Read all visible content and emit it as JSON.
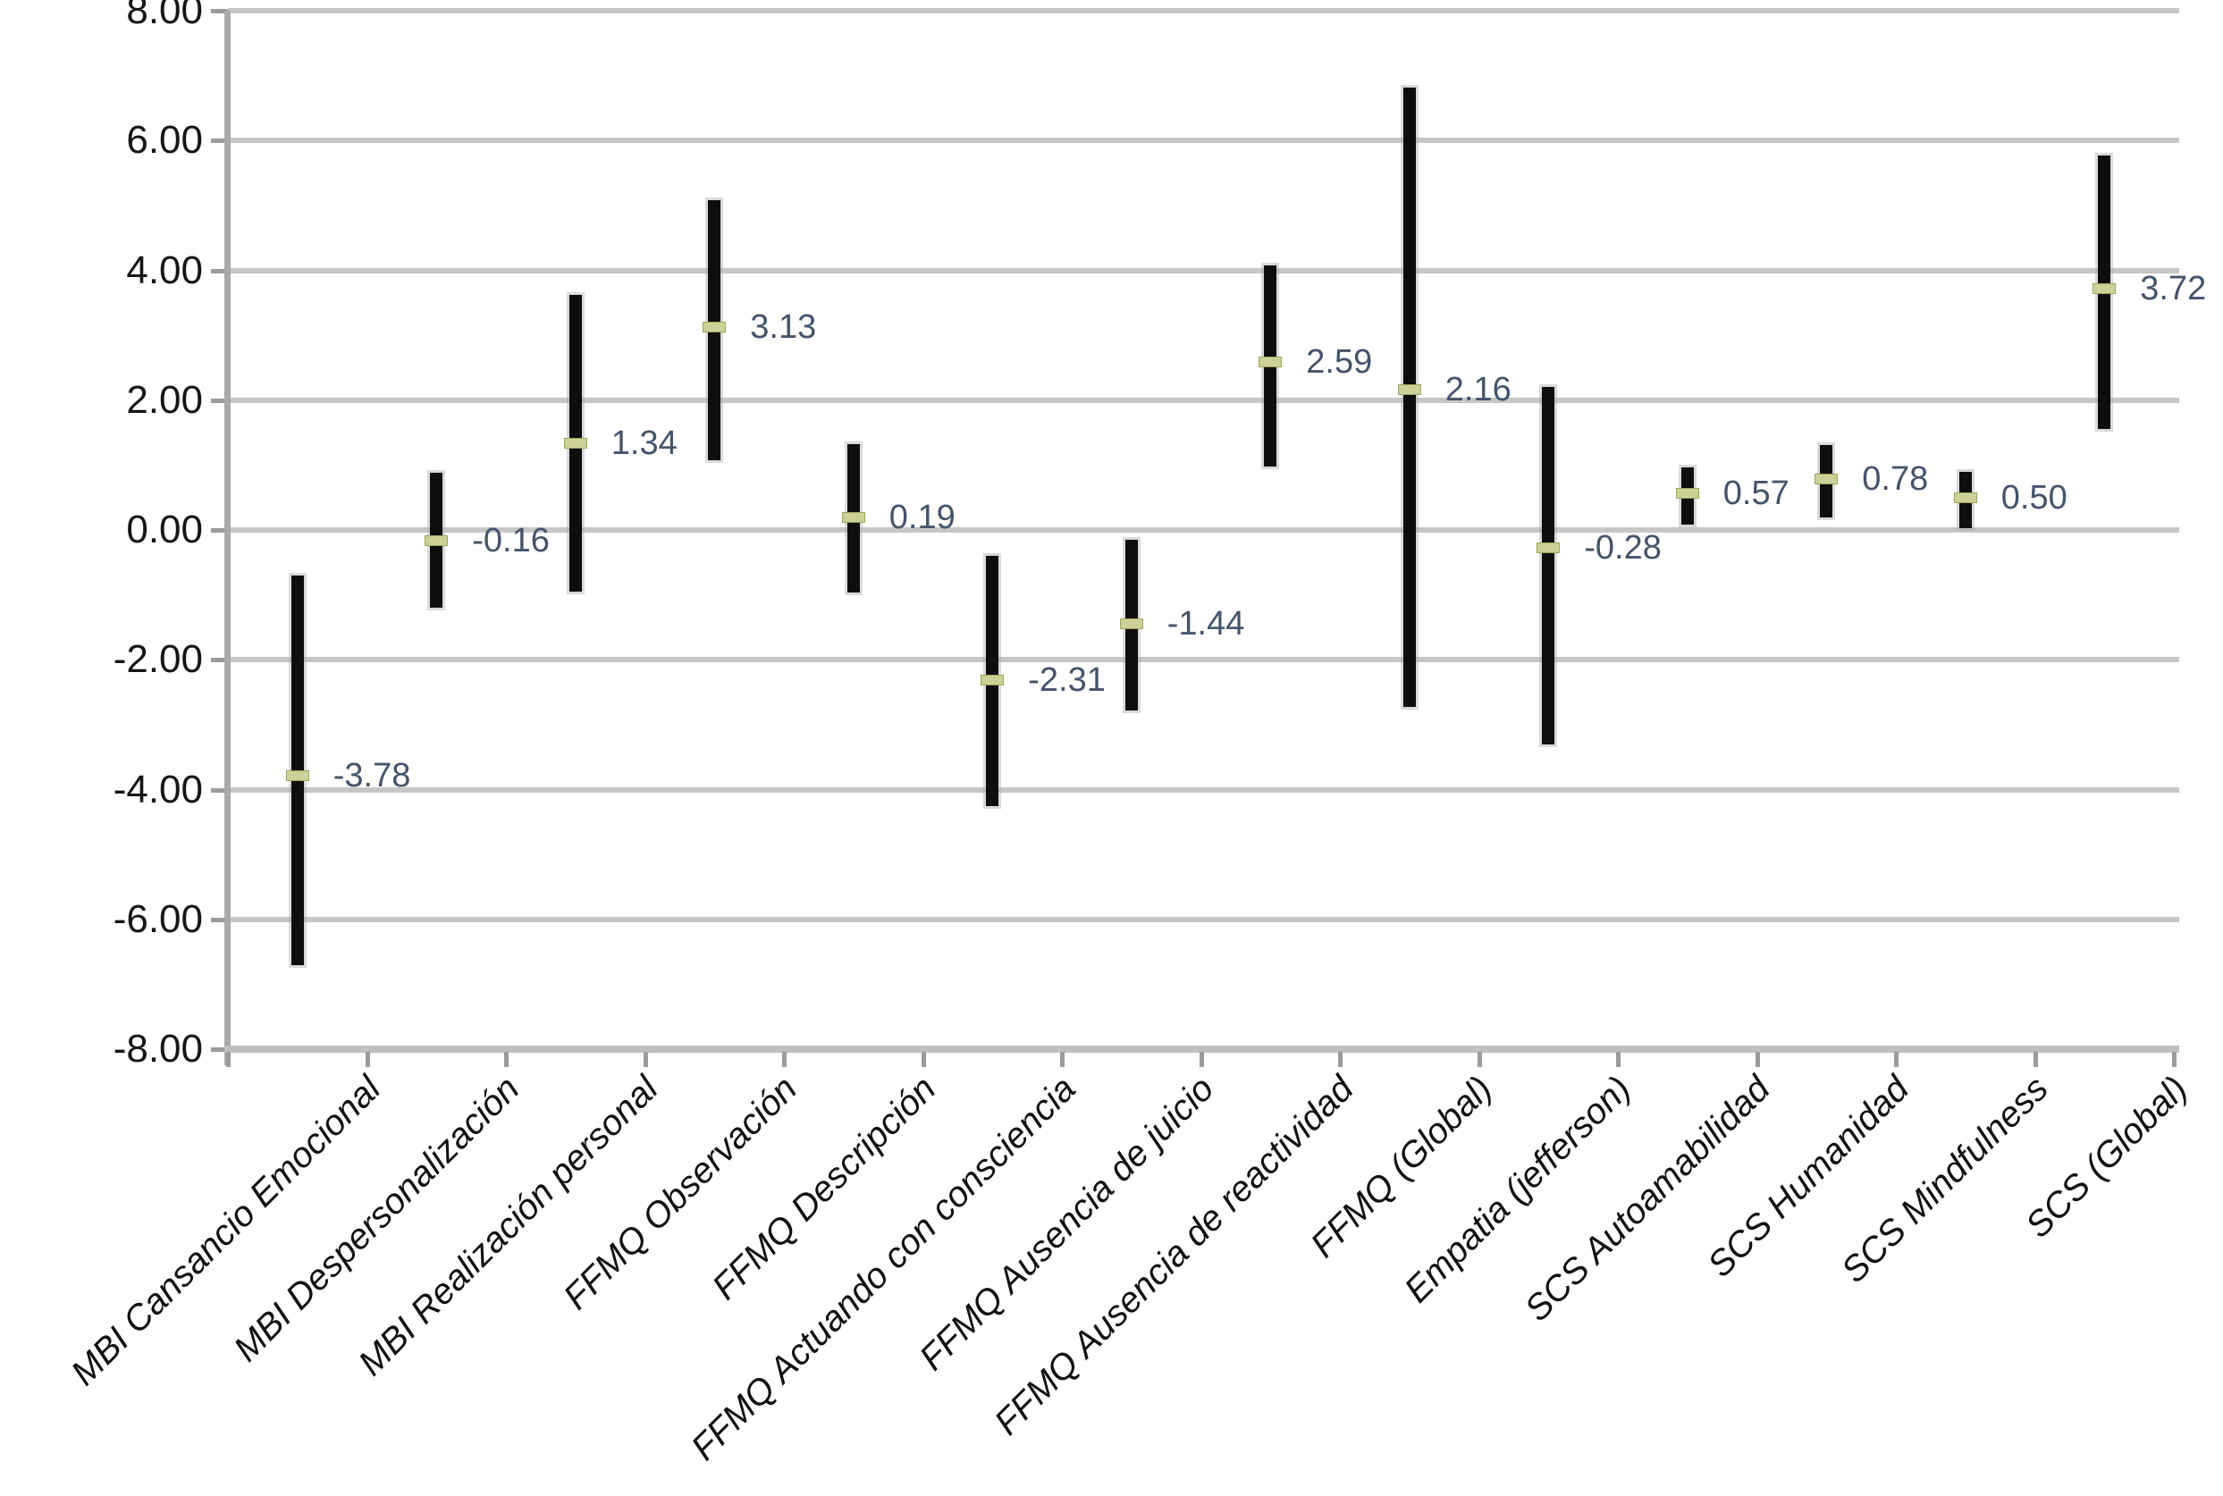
{
  "chart_data": {
    "type": "bar",
    "subtype": "floating-range-bars-with-point-markers",
    "title": "",
    "xlabel": "",
    "ylabel": "",
    "ylim": [
      -8,
      8
    ],
    "grid": true,
    "legend_position": "none",
    "y_ticks": [
      {
        "value": 8,
        "label": "8.00"
      },
      {
        "value": 6,
        "label": "6.00"
      },
      {
        "value": 4,
        "label": "4.00"
      },
      {
        "value": 2,
        "label": "2.00"
      },
      {
        "value": 0,
        "label": "0.00"
      },
      {
        "value": -2,
        "label": "-2.00"
      },
      {
        "value": -4,
        "label": "-4.00"
      },
      {
        "value": -6,
        "label": "-6.00"
      },
      {
        "value": -8,
        "label": "-8.00"
      }
    ],
    "points": [
      {
        "category": "MBI Cansancio Emocional",
        "value": -3.78,
        "value_label": "-3.78",
        "low": -6.7,
        "high": -0.7
      },
      {
        "category": "MBI Despersonalización",
        "value": -0.16,
        "value_label": "-0.16",
        "low": -1.2,
        "high": 0.88
      },
      {
        "category": "MBI Realización personal",
        "value": 1.34,
        "value_label": "1.34",
        "low": -0.95,
        "high": 3.62
      },
      {
        "category": "FFMQ Observación",
        "value": 3.13,
        "value_label": "3.13",
        "low": 1.08,
        "high": 5.08
      },
      {
        "category": "FFMQ Descripción",
        "value": 0.19,
        "value_label": "0.19",
        "low": -0.97,
        "high": 1.32
      },
      {
        "category": "FFMQ Actuando con consciencia",
        "value": -2.31,
        "value_label": "-2.31",
        "low": -4.25,
        "high": -0.4
      },
      {
        "category": "FFMQ Ausencia de juicio",
        "value": -1.44,
        "value_label": "-1.44",
        "low": -2.78,
        "high": -0.15
      },
      {
        "category": "FFMQ Ausencia de reactividad",
        "value": 2.59,
        "value_label": "2.59",
        "low": 0.98,
        "high": 4.08
      },
      {
        "category": "FFMQ (Global)",
        "value": 2.16,
        "value_label": "2.16",
        "low": -2.72,
        "high": 6.82
      },
      {
        "category": "Empatia (jefferson)",
        "value": -0.28,
        "value_label": "-0.28",
        "low": -3.3,
        "high": 2.2
      },
      {
        "category": "SCS Autoamabilidad",
        "value": 0.57,
        "value_label": "0.57",
        "low": 0.08,
        "high": 0.97
      },
      {
        "category": "SCS Humanidad",
        "value": 0.78,
        "value_label": "0.78",
        "low": 0.19,
        "high": 1.31
      },
      {
        "category": "SCS Mindfulness",
        "value": 0.5,
        "value_label": "0.50",
        "low": 0.03,
        "high": 0.9
      },
      {
        "category": "SCS (Global)",
        "value": 3.72,
        "value_label": "3.72",
        "low": 1.55,
        "high": 5.77
      }
    ]
  },
  "colors": {
    "background": "#ffffff",
    "bar": "#0e0e0e",
    "bar_halo": "rgba(168,168,168,0.42)",
    "marker_fill": "#ccd197",
    "marker_border": "#9fa55c",
    "value_label": "#44546a",
    "gridline": "#c6c6c6",
    "axis_line": "#a9a9a9",
    "baseline": "#bfbfbf",
    "tick": "#9b9b9b",
    "axis_text": "#151515",
    "category_text": "#111111"
  }
}
